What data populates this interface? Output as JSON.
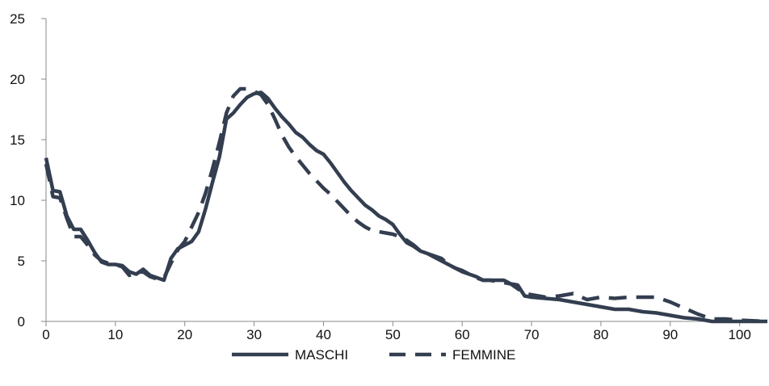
{
  "chart_data": {
    "type": "line",
    "title": "",
    "xlabel": "",
    "ylabel": "",
    "xlim": [
      0,
      104
    ],
    "ylim": [
      0,
      25
    ],
    "x_ticks": [
      0,
      10,
      20,
      30,
      40,
      50,
      60,
      70,
      80,
      90,
      100
    ],
    "y_ticks": [
      0,
      5,
      10,
      15,
      20,
      25
    ],
    "grid": false,
    "legend_position": "bottom",
    "line_color": "#333e50",
    "series": [
      {
        "name": "MASCHI",
        "style": "solid",
        "points": [
          [
            0,
            13.5
          ],
          [
            1,
            10.8
          ],
          [
            2,
            10.7
          ],
          [
            3,
            8.7
          ],
          [
            4,
            7.6
          ],
          [
            5,
            7.6
          ],
          [
            6,
            6.7
          ],
          [
            7,
            5.7
          ],
          [
            8,
            4.9
          ],
          [
            9,
            4.7
          ],
          [
            10,
            4.7
          ],
          [
            11,
            4.6
          ],
          [
            12,
            4.1
          ],
          [
            13,
            3.9
          ],
          [
            14,
            4.3
          ],
          [
            15,
            3.8
          ],
          [
            16,
            3.6
          ],
          [
            17,
            3.4
          ],
          [
            18,
            5.2
          ],
          [
            19,
            6.0
          ],
          [
            20,
            6.3
          ],
          [
            21,
            6.6
          ],
          [
            22,
            7.4
          ],
          [
            23,
            9.3
          ],
          [
            24,
            11.5
          ],
          [
            25,
            13.6
          ],
          [
            26,
            16.7
          ],
          [
            27,
            17.2
          ],
          [
            28,
            17.9
          ],
          [
            29,
            18.5
          ],
          [
            30,
            18.8
          ],
          [
            31,
            18.9
          ],
          [
            32,
            18.4
          ],
          [
            33,
            17.6
          ],
          [
            34,
            16.9
          ],
          [
            35,
            16.3
          ],
          [
            36,
            15.6
          ],
          [
            37,
            15.2
          ],
          [
            38,
            14.6
          ],
          [
            39,
            14.1
          ],
          [
            40,
            13.8
          ],
          [
            41,
            13.1
          ],
          [
            42,
            12.3
          ],
          [
            43,
            11.5
          ],
          [
            44,
            10.8
          ],
          [
            45,
            10.2
          ],
          [
            46,
            9.6
          ],
          [
            47,
            9.2
          ],
          [
            48,
            8.7
          ],
          [
            49,
            8.4
          ],
          [
            50,
            8.0
          ],
          [
            51,
            7.2
          ],
          [
            52,
            6.5
          ],
          [
            53,
            6.2
          ],
          [
            54,
            5.8
          ],
          [
            55,
            5.6
          ],
          [
            56,
            5.3
          ],
          [
            57,
            5.0
          ],
          [
            58,
            4.7
          ],
          [
            59,
            4.4
          ],
          [
            60,
            4.2
          ],
          [
            61,
            3.9
          ],
          [
            62,
            3.7
          ],
          [
            63,
            3.4
          ],
          [
            64,
            3.4
          ],
          [
            65,
            3.4
          ],
          [
            66,
            3.4
          ],
          [
            67,
            3.1
          ],
          [
            68,
            3.0
          ],
          [
            69,
            2.1
          ],
          [
            70,
            2.0
          ],
          [
            72,
            1.9
          ],
          [
            74,
            1.8
          ],
          [
            76,
            1.6
          ],
          [
            78,
            1.4
          ],
          [
            80,
            1.2
          ],
          [
            82,
            1.0
          ],
          [
            84,
            1.0
          ],
          [
            86,
            0.8
          ],
          [
            88,
            0.7
          ],
          [
            90,
            0.5
          ],
          [
            92,
            0.3
          ],
          [
            94,
            0.2
          ],
          [
            96,
            0.0
          ],
          [
            98,
            0.0
          ],
          [
            100,
            0.0
          ],
          [
            104,
            0.0
          ]
        ]
      },
      {
        "name": "FEMMINE",
        "style": "dashed",
        "points": [
          [
            0,
            13.0
          ],
          [
            1,
            10.3
          ],
          [
            2,
            10.2
          ],
          [
            3,
            8.5
          ],
          [
            4,
            7.0
          ],
          [
            5,
            7.0
          ],
          [
            6,
            6.3
          ],
          [
            7,
            5.5
          ],
          [
            8,
            5.0
          ],
          [
            9,
            4.8
          ],
          [
            10,
            4.7
          ],
          [
            11,
            4.5
          ],
          [
            12,
            3.8
          ],
          [
            13,
            4.0
          ],
          [
            14,
            4.1
          ],
          [
            15,
            3.7
          ],
          [
            16,
            3.5
          ],
          [
            17,
            3.6
          ],
          [
            18,
            4.8
          ],
          [
            19,
            5.9
          ],
          [
            20,
            6.6
          ],
          [
            21,
            7.8
          ],
          [
            22,
            9.0
          ],
          [
            23,
            10.6
          ],
          [
            24,
            12.6
          ],
          [
            25,
            14.8
          ],
          [
            26,
            17.2
          ],
          [
            27,
            18.6
          ],
          [
            28,
            19.2
          ],
          [
            29,
            19.2
          ],
          [
            30,
            19.0
          ],
          [
            31,
            18.7
          ],
          [
            32,
            17.9
          ],
          [
            33,
            16.7
          ],
          [
            34,
            15.4
          ],
          [
            35,
            14.4
          ],
          [
            36,
            13.6
          ],
          [
            37,
            12.9
          ],
          [
            38,
            12.2
          ],
          [
            39,
            11.6
          ],
          [
            40,
            11.0
          ],
          [
            41,
            10.5
          ],
          [
            42,
            9.9
          ],
          [
            43,
            9.3
          ],
          [
            44,
            8.7
          ],
          [
            45,
            8.2
          ],
          [
            46,
            7.8
          ],
          [
            47,
            7.5
          ],
          [
            48,
            7.4
          ],
          [
            49,
            7.3
          ],
          [
            50,
            7.2
          ],
          [
            51,
            7.0
          ],
          [
            52,
            6.7
          ],
          [
            53,
            6.3
          ],
          [
            54,
            5.8
          ],
          [
            55,
            5.6
          ],
          [
            56,
            5.4
          ],
          [
            57,
            5.2
          ],
          [
            58,
            4.7
          ],
          [
            59,
            4.4
          ],
          [
            60,
            4.1
          ],
          [
            61,
            3.9
          ],
          [
            62,
            3.6
          ],
          [
            63,
            3.4
          ],
          [
            64,
            3.4
          ],
          [
            65,
            3.3
          ],
          [
            66,
            3.2
          ],
          [
            67,
            3.1
          ],
          [
            68,
            2.7
          ],
          [
            69,
            2.3
          ],
          [
            70,
            2.2
          ],
          [
            72,
            2.0
          ],
          [
            74,
            2.1
          ],
          [
            76,
            2.3
          ],
          [
            78,
            1.8
          ],
          [
            80,
            2.0
          ],
          [
            82,
            1.9
          ],
          [
            84,
            2.0
          ],
          [
            86,
            2.0
          ],
          [
            88,
            2.0
          ],
          [
            90,
            1.6
          ],
          [
            92,
            1.1
          ],
          [
            94,
            0.6
          ],
          [
            96,
            0.2
          ],
          [
            98,
            0.2
          ],
          [
            100,
            0.1
          ],
          [
            104,
            0.0
          ]
        ]
      }
    ]
  }
}
